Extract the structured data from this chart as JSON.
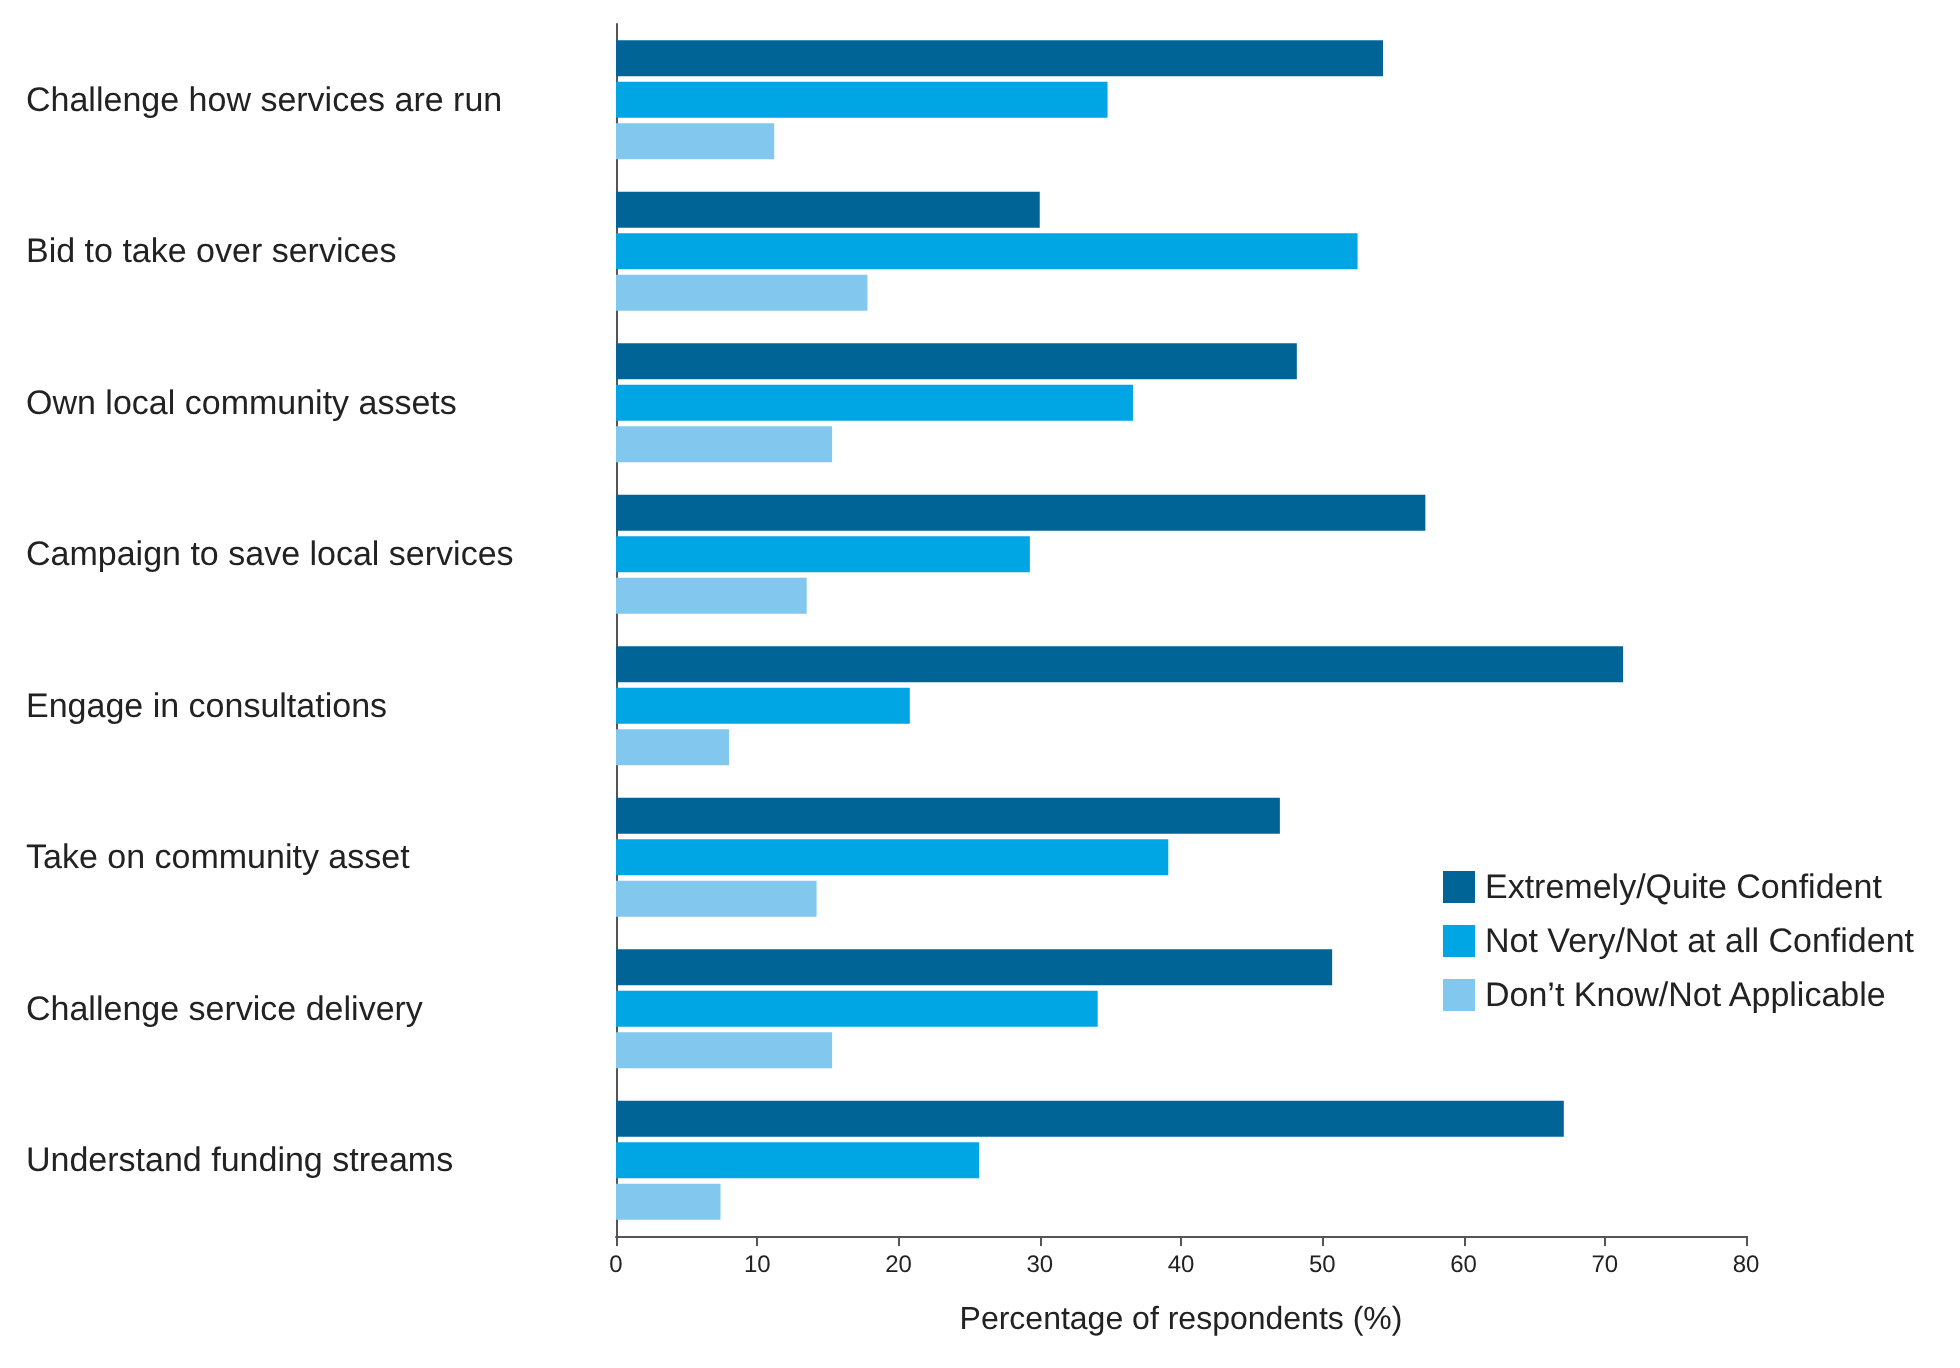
{
  "chart_data": {
    "type": "bar",
    "orientation": "horizontal",
    "xlabel": "Percentage of respondents (%)",
    "categories": [
      "Challenge how services are run",
      "Bid to take over services",
      "Own local community assets",
      "Campaign to save local services",
      "Engage in consultations",
      "Take on community asset",
      "Challenge service delivery",
      "Understand funding streams"
    ],
    "series": [
      {
        "name": "Extremely/Quite Confident",
        "color": "#006496",
        "values": [
          54.3,
          30,
          48.2,
          57.3,
          71.3,
          47,
          50.7,
          67.1
        ]
      },
      {
        "name": "Not Very/Not at all Confident",
        "color": "#00a5e3",
        "values": [
          34.8,
          52.5,
          36.6,
          29.3,
          20.8,
          39.1,
          34.1,
          25.7
        ]
      },
      {
        "name": "Don’t Know/Not Applicable",
        "color": "#82c8ee",
        "values": [
          11.2,
          17.8,
          15.3,
          13.5,
          8,
          14.2,
          15.3,
          7.4
        ]
      }
    ],
    "xlim": [
      0,
      80
    ],
    "xticks": [
      0,
      10,
      20,
      30,
      40,
      50,
      60,
      70,
      80
    ],
    "grid": false,
    "legend": "right"
  }
}
